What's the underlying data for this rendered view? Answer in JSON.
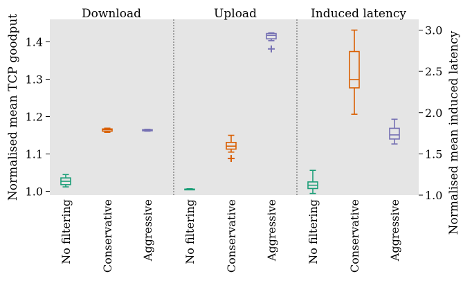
{
  "chart_data": {
    "type": "box",
    "panels": [
      {
        "title": "Download",
        "axis": "left",
        "categories": [
          "No filtering",
          "Conservative",
          "Aggressive"
        ],
        "boxes": [
          {
            "whisker_low": 1.012,
            "q1": 1.018,
            "median": 1.027,
            "q3": 1.036,
            "whisker_high": 1.045,
            "outliers": []
          },
          {
            "whisker_low": 1.158,
            "q1": 1.161,
            "median": 1.165,
            "q3": 1.167,
            "whisker_high": 1.169,
            "outliers": []
          },
          {
            "whisker_low": 1.161,
            "q1": 1.162,
            "median": 1.164,
            "q3": 1.165,
            "whisker_high": 1.166,
            "outliers": []
          }
        ]
      },
      {
        "title": "Upload",
        "axis": "left",
        "categories": [
          "No filtering",
          "Conservative",
          "Aggressive"
        ],
        "boxes": [
          {
            "whisker_low": 1.005,
            "q1": 1.005,
            "median": 1.006,
            "q3": 1.006,
            "whisker_high": 1.007,
            "outliers": []
          },
          {
            "whisker_low": 1.105,
            "q1": 1.113,
            "median": 1.121,
            "q3": 1.131,
            "whisker_high": 1.15,
            "outliers": [
              1.088
            ]
          },
          {
            "whisker_low": 1.403,
            "q1": 1.408,
            "median": 1.417,
            "q3": 1.422,
            "whisker_high": 1.424,
            "outliers": [
              1.381
            ]
          }
        ]
      },
      {
        "title": "Induced latency",
        "axis": "right",
        "categories": [
          "No filtering",
          "Conservative",
          "Aggressive"
        ],
        "boxes": [
          {
            "whisker_low": 1.02,
            "q1": 1.08,
            "median": 1.12,
            "q3": 1.16,
            "whisker_high": 1.3,
            "outliers": []
          },
          {
            "whisker_low": 1.98,
            "q1": 2.3,
            "median": 2.4,
            "q3": 2.74,
            "whisker_high": 3.0,
            "outliers": []
          },
          {
            "whisker_low": 1.62,
            "q1": 1.68,
            "median": 1.73,
            "q3": 1.81,
            "whisker_high": 1.92,
            "outliers": []
          }
        ]
      }
    ],
    "left_axis": {
      "label": "Normalised mean TCP goodput",
      "ylim": [
        0.99,
        1.46
      ],
      "ticks": [
        1.0,
        1.1,
        1.2,
        1.3,
        1.4
      ],
      "tick_labels": [
        "1.0",
        "1.1",
        "1.2",
        "1.3",
        "1.4"
      ]
    },
    "right_axis": {
      "label": "Normalised mean induced latency",
      "ylim": [
        1.0,
        3.13
      ],
      "ticks": [
        1.0,
        1.5,
        2.0,
        2.5,
        3.0
      ],
      "tick_labels": [
        "1.0",
        "1.5",
        "2.0",
        "2.5",
        "3.0"
      ]
    },
    "colors": {
      "No filtering": "#1b9e77",
      "Conservative": "#d95f02",
      "Aggressive": "#7570b3",
      "background": "#e5e5e5",
      "separator": "#555555"
    },
    "grid": false,
    "legend": "none"
  }
}
